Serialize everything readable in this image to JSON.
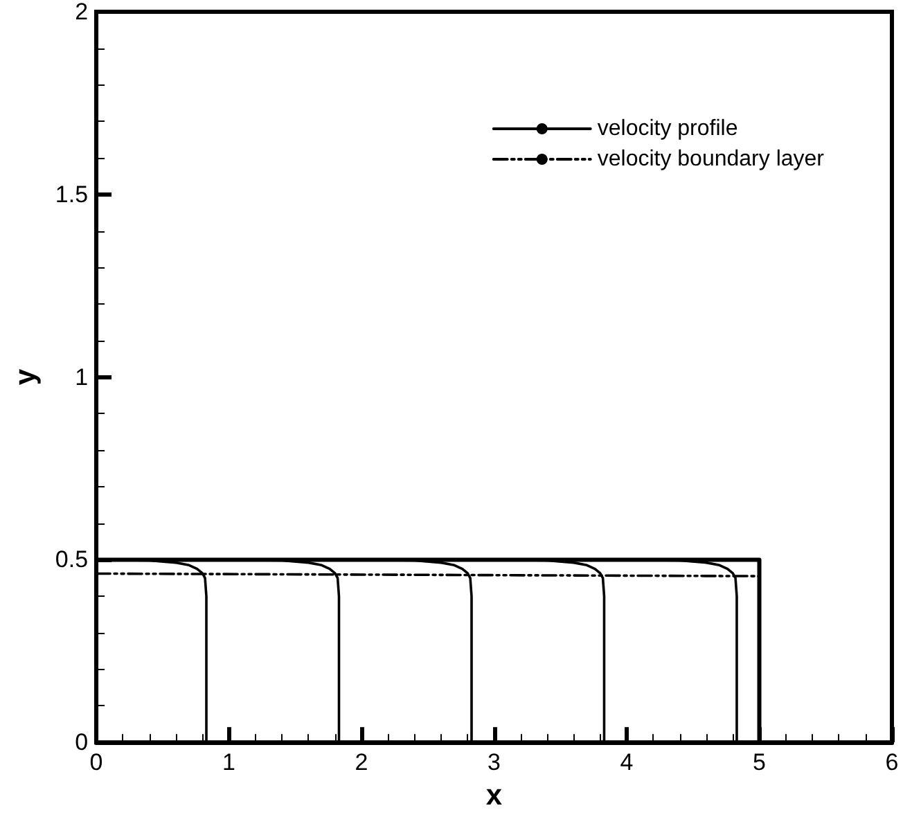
{
  "chart_data": {
    "type": "line",
    "xlabel": "x",
    "ylabel": "y",
    "xlim": [
      0,
      6
    ],
    "xticks": [
      0,
      1,
      2,
      3,
      4,
      5,
      6
    ],
    "ylim": [
      0,
      2
    ],
    "yticks": [
      0,
      0.5,
      1,
      1.5,
      2
    ],
    "grid": false,
    "legend": "top right",
    "marker": "none",
    "series": [
      {
        "name": "velocity profile",
        "color": "#000000",
        "line_style": "solid",
        "x": [
          0,
          0.4,
          0.6,
          0.7,
          0.76,
          0.8,
          0.82,
          0.83,
          0.83,
          null,
          1,
          1.4,
          1.6,
          1.7,
          1.76,
          1.8,
          1.82,
          1.83,
          1.83,
          null,
          2,
          2.4,
          2.6,
          2.7,
          2.76,
          2.8,
          2.82,
          2.83,
          2.83,
          null,
          3,
          3.4,
          3.6,
          3.7,
          3.76,
          3.8,
          3.82,
          3.83,
          3.83,
          null,
          4,
          4.4,
          4.6,
          4.7,
          4.76,
          4.8,
          4.82,
          4.83,
          4.83
        ],
        "values": [
          0.5,
          0.498,
          0.492,
          0.485,
          0.475,
          0.463,
          0.45,
          0.4,
          0,
          null,
          0.5,
          0.498,
          0.492,
          0.485,
          0.475,
          0.463,
          0.45,
          0.4,
          0,
          null,
          0.5,
          0.498,
          0.492,
          0.485,
          0.475,
          0.463,
          0.45,
          0.4,
          0,
          null,
          0.5,
          0.498,
          0.492,
          0.485,
          0.475,
          0.463,
          0.45,
          0.4,
          0,
          null,
          0.5,
          0.498,
          0.492,
          0.485,
          0.475,
          0.463,
          0.45,
          0.4,
          0
        ]
      },
      {
        "name": "velocity boundary layer",
        "color": "#000000",
        "line_style": "dashed",
        "x": [
          0,
          5
        ],
        "values": [
          0.462,
          0.455
        ]
      },
      {
        "color": "#000000",
        "line_style": "solid",
        "x": [
          0,
          5,
          5
        ],
        "values": [
          0.5,
          0.5,
          0
        ]
      }
    ]
  }
}
